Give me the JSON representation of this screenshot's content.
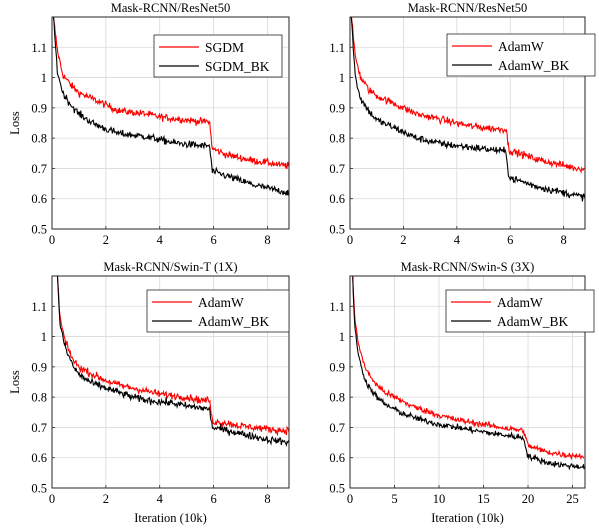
{
  "ylabel": "Loss",
  "yticks": [
    "0.5",
    "0.6",
    "0.7",
    "0.8",
    "0.9",
    "1",
    "1.1"
  ],
  "colors": {
    "red": "#ff0000",
    "black": "#000000"
  },
  "chart_data": [
    {
      "type": "line",
      "title": "Mask-RCNN/ResNet50",
      "xlabel": "",
      "ylabel": "Loss",
      "xlim": [
        0,
        8.8
      ],
      "ylim": [
        0.5,
        1.2
      ],
      "xticks": [
        "0",
        "2",
        "4",
        "6",
        "8"
      ],
      "legend": "top-right",
      "series": [
        {
          "name": "SGDM",
          "color": "#ff0000",
          "x": [
            0.05,
            0.2,
            0.4,
            0.7,
            1,
            1.5,
            2,
            2.5,
            3,
            3.5,
            4,
            4.5,
            5,
            5.5,
            5.85,
            5.95,
            6.5,
            7,
            7.5,
            8,
            8.5,
            8.8
          ],
          "y": [
            1.2,
            1.09,
            1.01,
            0.975,
            0.95,
            0.93,
            0.91,
            0.89,
            0.885,
            0.88,
            0.87,
            0.865,
            0.86,
            0.855,
            0.855,
            0.765,
            0.745,
            0.735,
            0.725,
            0.72,
            0.71,
            0.71
          ]
        },
        {
          "name": "SGDM_BK",
          "color": "#000000",
          "x": [
            0.05,
            0.2,
            0.4,
            0.7,
            1,
            1.5,
            2,
            2.5,
            3,
            3.5,
            4,
            4.5,
            5,
            5.5,
            5.85,
            5.95,
            6.5,
            7,
            7.5,
            8,
            8.5,
            8.8
          ],
          "y": [
            1.2,
            1.02,
            0.95,
            0.91,
            0.88,
            0.85,
            0.83,
            0.815,
            0.81,
            0.805,
            0.795,
            0.785,
            0.78,
            0.775,
            0.775,
            0.69,
            0.675,
            0.66,
            0.645,
            0.635,
            0.625,
            0.62
          ]
        }
      ]
    },
    {
      "type": "line",
      "title": "Mask-RCNN/ResNet50",
      "xlabel": "",
      "ylabel": "",
      "xlim": [
        0,
        8.8
      ],
      "ylim": [
        0.5,
        1.2
      ],
      "xticks": [
        "0",
        "2",
        "4",
        "6",
        "8"
      ],
      "legend": "top-right",
      "series": [
        {
          "name": "AdamW",
          "color": "#ff0000",
          "x": [
            0.05,
            0.2,
            0.4,
            0.7,
            1,
            1.5,
            2,
            2.5,
            3,
            3.5,
            4,
            4.5,
            5,
            5.5,
            5.85,
            5.95,
            6.5,
            7,
            7.5,
            8,
            8.5,
            8.8
          ],
          "y": [
            1.2,
            1.07,
            1.0,
            0.96,
            0.94,
            0.92,
            0.9,
            0.88,
            0.87,
            0.86,
            0.85,
            0.84,
            0.835,
            0.83,
            0.83,
            0.76,
            0.745,
            0.73,
            0.72,
            0.71,
            0.7,
            0.7
          ]
        },
        {
          "name": "AdamW_BK",
          "color": "#000000",
          "x": [
            0.05,
            0.2,
            0.4,
            0.7,
            1,
            1.5,
            2,
            2.5,
            3,
            3.5,
            4,
            4.5,
            5,
            5.5,
            5.85,
            5.95,
            6.5,
            7,
            7.5,
            8,
            8.5,
            8.8
          ],
          "y": [
            1.2,
            1.0,
            0.93,
            0.89,
            0.86,
            0.84,
            0.82,
            0.8,
            0.79,
            0.78,
            0.775,
            0.77,
            0.765,
            0.76,
            0.755,
            0.67,
            0.655,
            0.64,
            0.63,
            0.62,
            0.61,
            0.605
          ]
        }
      ]
    },
    {
      "type": "line",
      "title": "Mask-RCNN/Swin-T (1X)",
      "xlabel": "Iteration (10k)",
      "ylabel": "Loss",
      "xlim": [
        0,
        8.8
      ],
      "ylim": [
        0.5,
        1.2
      ],
      "xticks": [
        "0",
        "2",
        "4",
        "6",
        "8"
      ],
      "legend": "top-right",
      "series": [
        {
          "name": "AdamW",
          "color": "#ff0000",
          "x": [
            0.2,
            0.3,
            0.5,
            0.8,
            1,
            1.5,
            2,
            2.5,
            3,
            3.5,
            4,
            4.5,
            5,
            5.5,
            5.85,
            5.95,
            6.5,
            7,
            7.5,
            8,
            8.5,
            8.8
          ],
          "y": [
            1.2,
            1.06,
            0.98,
            0.92,
            0.9,
            0.875,
            0.855,
            0.84,
            0.83,
            0.82,
            0.81,
            0.805,
            0.8,
            0.79,
            0.79,
            0.72,
            0.715,
            0.705,
            0.7,
            0.695,
            0.69,
            0.69
          ]
        },
        {
          "name": "AdamW_BK",
          "color": "#000000",
          "x": [
            0.2,
            0.3,
            0.5,
            0.8,
            1,
            1.5,
            2,
            2.5,
            3,
            3.5,
            4,
            4.5,
            5,
            5.5,
            5.85,
            5.95,
            6.5,
            7,
            7.5,
            8,
            8.5,
            8.8
          ],
          "y": [
            1.2,
            1.04,
            0.96,
            0.9,
            0.875,
            0.845,
            0.83,
            0.815,
            0.8,
            0.79,
            0.785,
            0.78,
            0.77,
            0.765,
            0.76,
            0.7,
            0.69,
            0.68,
            0.67,
            0.66,
            0.655,
            0.65
          ]
        }
      ]
    },
    {
      "type": "line",
      "title": "Mask-RCNN/Swin-S (3X)",
      "xlabel": "Iteration (10k)",
      "ylabel": "",
      "xlim": [
        0,
        26.4
      ],
      "ylim": [
        0.5,
        1.2
      ],
      "xticks": [
        "0",
        "5",
        "10",
        "15",
        "20",
        "25"
      ],
      "legend": "top-right",
      "series": [
        {
          "name": "AdamW",
          "color": "#ff0000",
          "x": [
            0.3,
            0.5,
            1,
            1.5,
            2,
            3,
            4,
            5,
            6,
            7,
            8,
            10,
            12,
            14,
            16,
            18,
            19.5,
            20,
            21,
            22,
            24,
            26.3
          ],
          "y": [
            1.2,
            1.07,
            0.97,
            0.915,
            0.88,
            0.84,
            0.815,
            0.8,
            0.785,
            0.77,
            0.76,
            0.74,
            0.725,
            0.715,
            0.705,
            0.695,
            0.69,
            0.64,
            0.63,
            0.62,
            0.61,
            0.605
          ]
        },
        {
          "name": "AdamW_BK",
          "color": "#000000",
          "x": [
            0.3,
            0.5,
            1,
            1.5,
            2,
            3,
            4,
            5,
            6,
            7,
            8,
            10,
            12,
            14,
            16,
            18,
            19.5,
            20,
            21,
            22,
            24,
            26.3
          ],
          "y": [
            1.2,
            1.04,
            0.93,
            0.875,
            0.84,
            0.8,
            0.775,
            0.76,
            0.745,
            0.735,
            0.725,
            0.71,
            0.7,
            0.69,
            0.68,
            0.672,
            0.665,
            0.605,
            0.595,
            0.585,
            0.575,
            0.57
          ]
        }
      ]
    }
  ]
}
